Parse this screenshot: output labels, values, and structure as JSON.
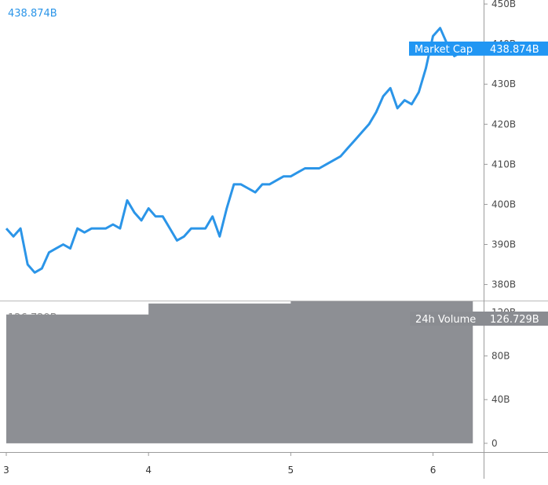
{
  "chart_data": [
    {
      "type": "line",
      "title": "",
      "readout": "438.874B",
      "series": [
        {
          "name": "Market Cap",
          "color": "#2b95e8",
          "x": [
            3.0,
            3.05,
            3.1,
            3.15,
            3.2,
            3.25,
            3.3,
            3.35,
            3.4,
            3.45,
            3.5,
            3.55,
            3.6,
            3.65,
            3.7,
            3.75,
            3.8,
            3.85,
            3.9,
            3.95,
            4.0,
            4.05,
            4.1,
            4.15,
            4.2,
            4.25,
            4.3,
            4.35,
            4.4,
            4.45,
            4.5,
            4.55,
            4.6,
            4.65,
            4.7,
            4.75,
            4.8,
            4.85,
            4.9,
            4.95,
            5.0,
            5.05,
            5.1,
            5.15,
            5.2,
            5.25,
            5.3,
            5.35,
            5.4,
            5.45,
            5.5,
            5.55,
            5.6,
            5.65,
            5.7,
            5.75,
            5.8,
            5.85,
            5.9,
            5.95,
            6.0,
            6.05,
            6.1,
            6.15,
            6.2,
            6.25
          ],
          "values": [
            394,
            392,
            394,
            385,
            383,
            384,
            388,
            389,
            390,
            389,
            394,
            393,
            394,
            394,
            394,
            395,
            394,
            401,
            398,
            396,
            399,
            397,
            397,
            394,
            391,
            392,
            394,
            394,
            394,
            397,
            392,
            399,
            405,
            405,
            404,
            403,
            405,
            405,
            406,
            407,
            407,
            408,
            409,
            409,
            409,
            410,
            411,
            412,
            414,
            416,
            418,
            420,
            423,
            427,
            429,
            424,
            426,
            425,
            428,
            434,
            442,
            444,
            440,
            437,
            438,
            439
          ]
        }
      ],
      "xlim": [
        3,
        6.4
      ],
      "ylim": [
        376,
        451
      ],
      "y_ticks": [
        380,
        390,
        400,
        410,
        420,
        430,
        440,
        450
      ],
      "y_tick_labels": [
        "380B",
        "390B",
        "400B",
        "410B",
        "420B",
        "430B",
        "440B",
        "450B"
      ],
      "last_value_tag": {
        "label": "Market Cap",
        "value_text": "438.874B",
        "value": 438.874
      },
      "grid": false
    },
    {
      "type": "area",
      "title": "",
      "readout": "126.729B",
      "series": [
        {
          "name": "24h Volume",
          "color": "#8d8f94",
          "x": [
            3.0,
            4.0,
            5.0,
            6.28
          ],
          "values": [
            118,
            128,
            130,
            126.729
          ],
          "step": true
        }
      ],
      "xlim": [
        3,
        6.4
      ],
      "ylim": [
        -8,
        130
      ],
      "y_ticks": [
        0,
        40,
        80,
        120
      ],
      "y_tick_labels": [
        "0",
        "40B",
        "80B",
        "120B"
      ],
      "last_value_tag": {
        "label": "24h Volume",
        "value_text": "126.729B",
        "value": 126.729
      },
      "grid": false
    }
  ],
  "x_axis": {
    "ticks": [
      3,
      4,
      5,
      6
    ],
    "tick_labels": [
      "3",
      "4",
      "5",
      "6"
    ]
  },
  "colors": {
    "axis": "#9b9b9b",
    "tag_blue": "#2196f3",
    "tag_gray": "#8a8c91"
  }
}
